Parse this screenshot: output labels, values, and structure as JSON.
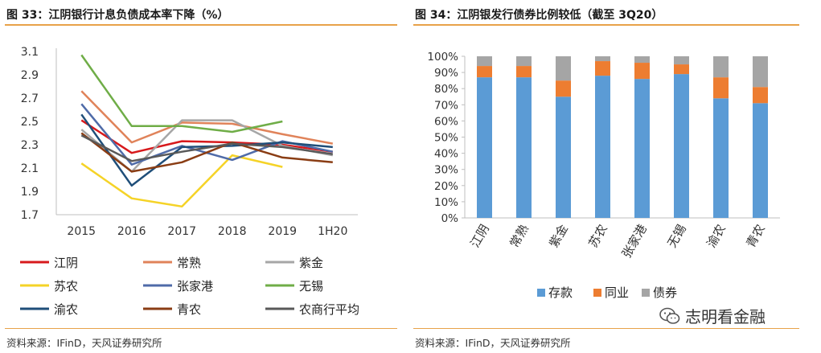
{
  "left": {
    "title": "图 33：江阴银行计息负债成本率下降（%）",
    "source": "资料来源：IFinD，天风证券研究所"
  },
  "right": {
    "title": "图 34：江阴银发行债券比例较低（截至 3Q20）",
    "source": "资料来源：IFinD，天风证券研究所"
  },
  "watermark": {
    "text": "志明看金融",
    "icon": "wechat-icon"
  },
  "chart_data": [
    {
      "type": "line",
      "categories": [
        "2015",
        "2016",
        "2017",
        "2018",
        "2019",
        "1H20"
      ],
      "ylim": [
        1.7,
        3.1
      ],
      "yticks": [
        "1.7",
        "1.9",
        "2.1",
        "2.3",
        "2.5",
        "2.7",
        "2.9",
        "3.1"
      ],
      "grid": false,
      "legend": "bottom",
      "series": [
        {
          "name": "江阴",
          "color": "#d7191c",
          "values": [
            2.51,
            2.23,
            2.33,
            2.32,
            2.3,
            2.24
          ]
        },
        {
          "name": "常熟",
          "color": "#e0835a",
          "values": [
            2.76,
            2.32,
            2.49,
            2.48,
            2.39,
            2.31
          ]
        },
        {
          "name": "紫金",
          "color": "#a6a6a6",
          "values": [
            2.43,
            2.07,
            2.51,
            2.51,
            2.29,
            2.21
          ]
        },
        {
          "name": "苏农",
          "color": "#f5d327",
          "values": [
            2.14,
            1.84,
            1.77,
            2.21,
            2.11,
            null
          ]
        },
        {
          "name": "张家港",
          "color": "#4f6ba8",
          "values": [
            2.65,
            2.13,
            2.29,
            2.17,
            2.33,
            2.24
          ]
        },
        {
          "name": "无锡",
          "color": "#6fad47",
          "values": [
            3.07,
            2.46,
            2.46,
            2.41,
            2.5,
            null
          ]
        },
        {
          "name": "渝农",
          "color": "#1f4e79",
          "values": [
            2.56,
            1.95,
            2.28,
            2.29,
            2.32,
            2.28
          ]
        },
        {
          "name": "青农",
          "color": "#8a3d14",
          "values": [
            2.4,
            2.07,
            2.15,
            2.32,
            2.19,
            2.15
          ]
        },
        {
          "name": "农商行平均",
          "color": "#595959",
          "values": [
            2.38,
            2.16,
            2.24,
            2.31,
            2.28,
            2.22
          ]
        }
      ]
    },
    {
      "type": "bar",
      "stacked": true,
      "categories": [
        "江阴",
        "常熟",
        "紫金",
        "苏农",
        "张家港",
        "无锡",
        "渝农",
        "青农"
      ],
      "ylim": [
        0,
        100
      ],
      "yticks": [
        "0%",
        "10%",
        "20%",
        "30%",
        "40%",
        "50%",
        "60%",
        "70%",
        "80%",
        "90%",
        "100%"
      ],
      "legend": "bottom",
      "series": [
        {
          "name": "存款",
          "color": "#5b9bd5",
          "values": [
            87,
            87,
            75,
            88,
            86,
            89,
            74,
            71
          ]
        },
        {
          "name": "同业",
          "color": "#ed7d31",
          "values": [
            7,
            7,
            10,
            9,
            10,
            6,
            13,
            10
          ]
        },
        {
          "name": "债券",
          "color": "#a5a5a5",
          "values": [
            6,
            6,
            15,
            3,
            4,
            5,
            13,
            19
          ]
        }
      ]
    }
  ]
}
